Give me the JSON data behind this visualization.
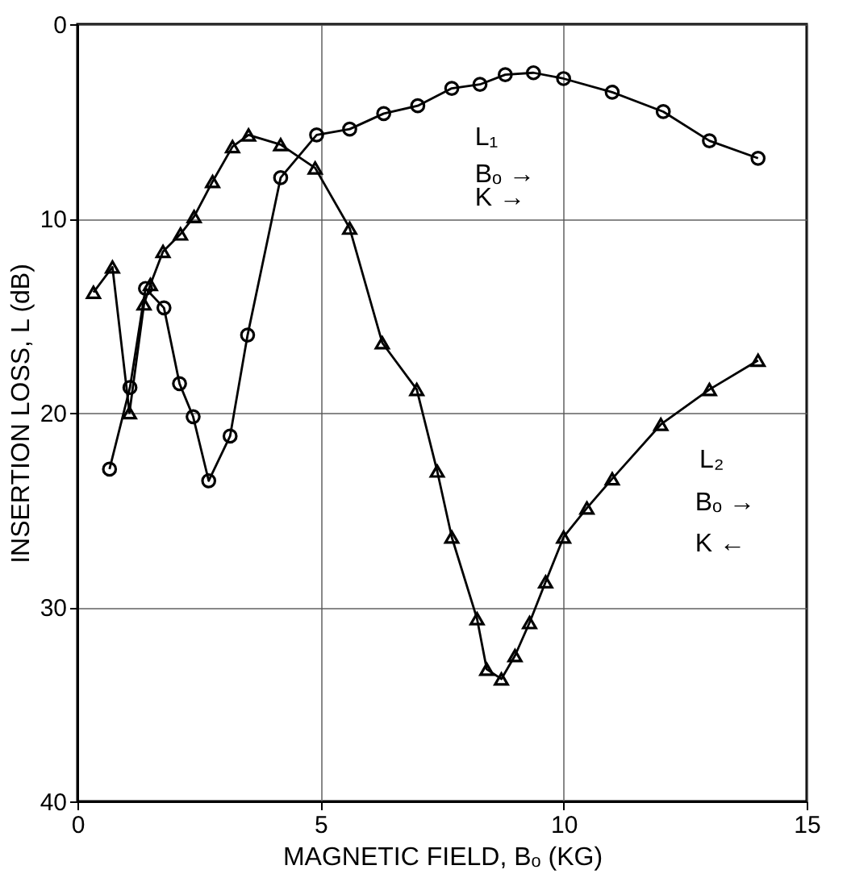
{
  "chart_data": {
    "type": "line",
    "xlabel": "MAGNETIC FIELD, Bₒ (KG)",
    "ylabel": "INSERTION LOSS, L (dB)",
    "xlim": [
      0,
      15
    ],
    "xticks": [
      0,
      5,
      10,
      15
    ],
    "ylim": [
      40,
      0
    ],
    "yticks": [
      0,
      10,
      20,
      30,
      40
    ],
    "grid": true,
    "line_style": "solid",
    "series": [
      {
        "color": "#000000",
        "marker": "circle",
        "x": [
          0.66,
          1.08,
          1.4,
          1.78,
          2.1,
          2.38,
          2.7,
          3.14,
          3.5,
          4.18,
          4.92,
          5.6,
          6.3,
          7.0,
          7.7,
          8.28,
          8.8,
          9.38,
          10.0,
          11.0,
          12.05,
          13.0,
          14.0
        ],
        "values": [
          22.9,
          18.7,
          13.6,
          14.6,
          18.5,
          20.2,
          23.5,
          21.2,
          16.0,
          7.9,
          5.7,
          5.4,
          4.6,
          4.2,
          3.3,
          3.1,
          2.6,
          2.5,
          2.8,
          3.5,
          4.5,
          6.0,
          6.9
        ]
      },
      {
        "color": "#000000",
        "marker": "triangle",
        "x": [
          0.33,
          0.72,
          1.07,
          1.37,
          1.5,
          1.76,
          2.12,
          2.4,
          2.78,
          3.19,
          3.52,
          4.18,
          4.89,
          5.6,
          6.27,
          6.98,
          7.4,
          7.7,
          8.22,
          8.42,
          8.72,
          9.0,
          9.3,
          9.63,
          10.0,
          10.48,
          11.0,
          12.0,
          13.0,
          14.0
        ],
        "values": [
          13.8,
          12.5,
          20.0,
          14.4,
          13.4,
          11.7,
          10.8,
          9.9,
          8.1,
          6.3,
          5.7,
          6.2,
          7.4,
          10.5,
          16.4,
          18.8,
          23.0,
          26.4,
          30.6,
          33.2,
          33.7,
          32.5,
          30.8,
          28.7,
          26.4,
          24.9,
          23.4,
          20.6,
          18.8,
          17.3
        ]
      }
    ],
    "annotations": [
      "L₁",
      "Bₒ →",
      "K →",
      "L₂",
      "Bₒ →",
      "K ←"
    ]
  }
}
